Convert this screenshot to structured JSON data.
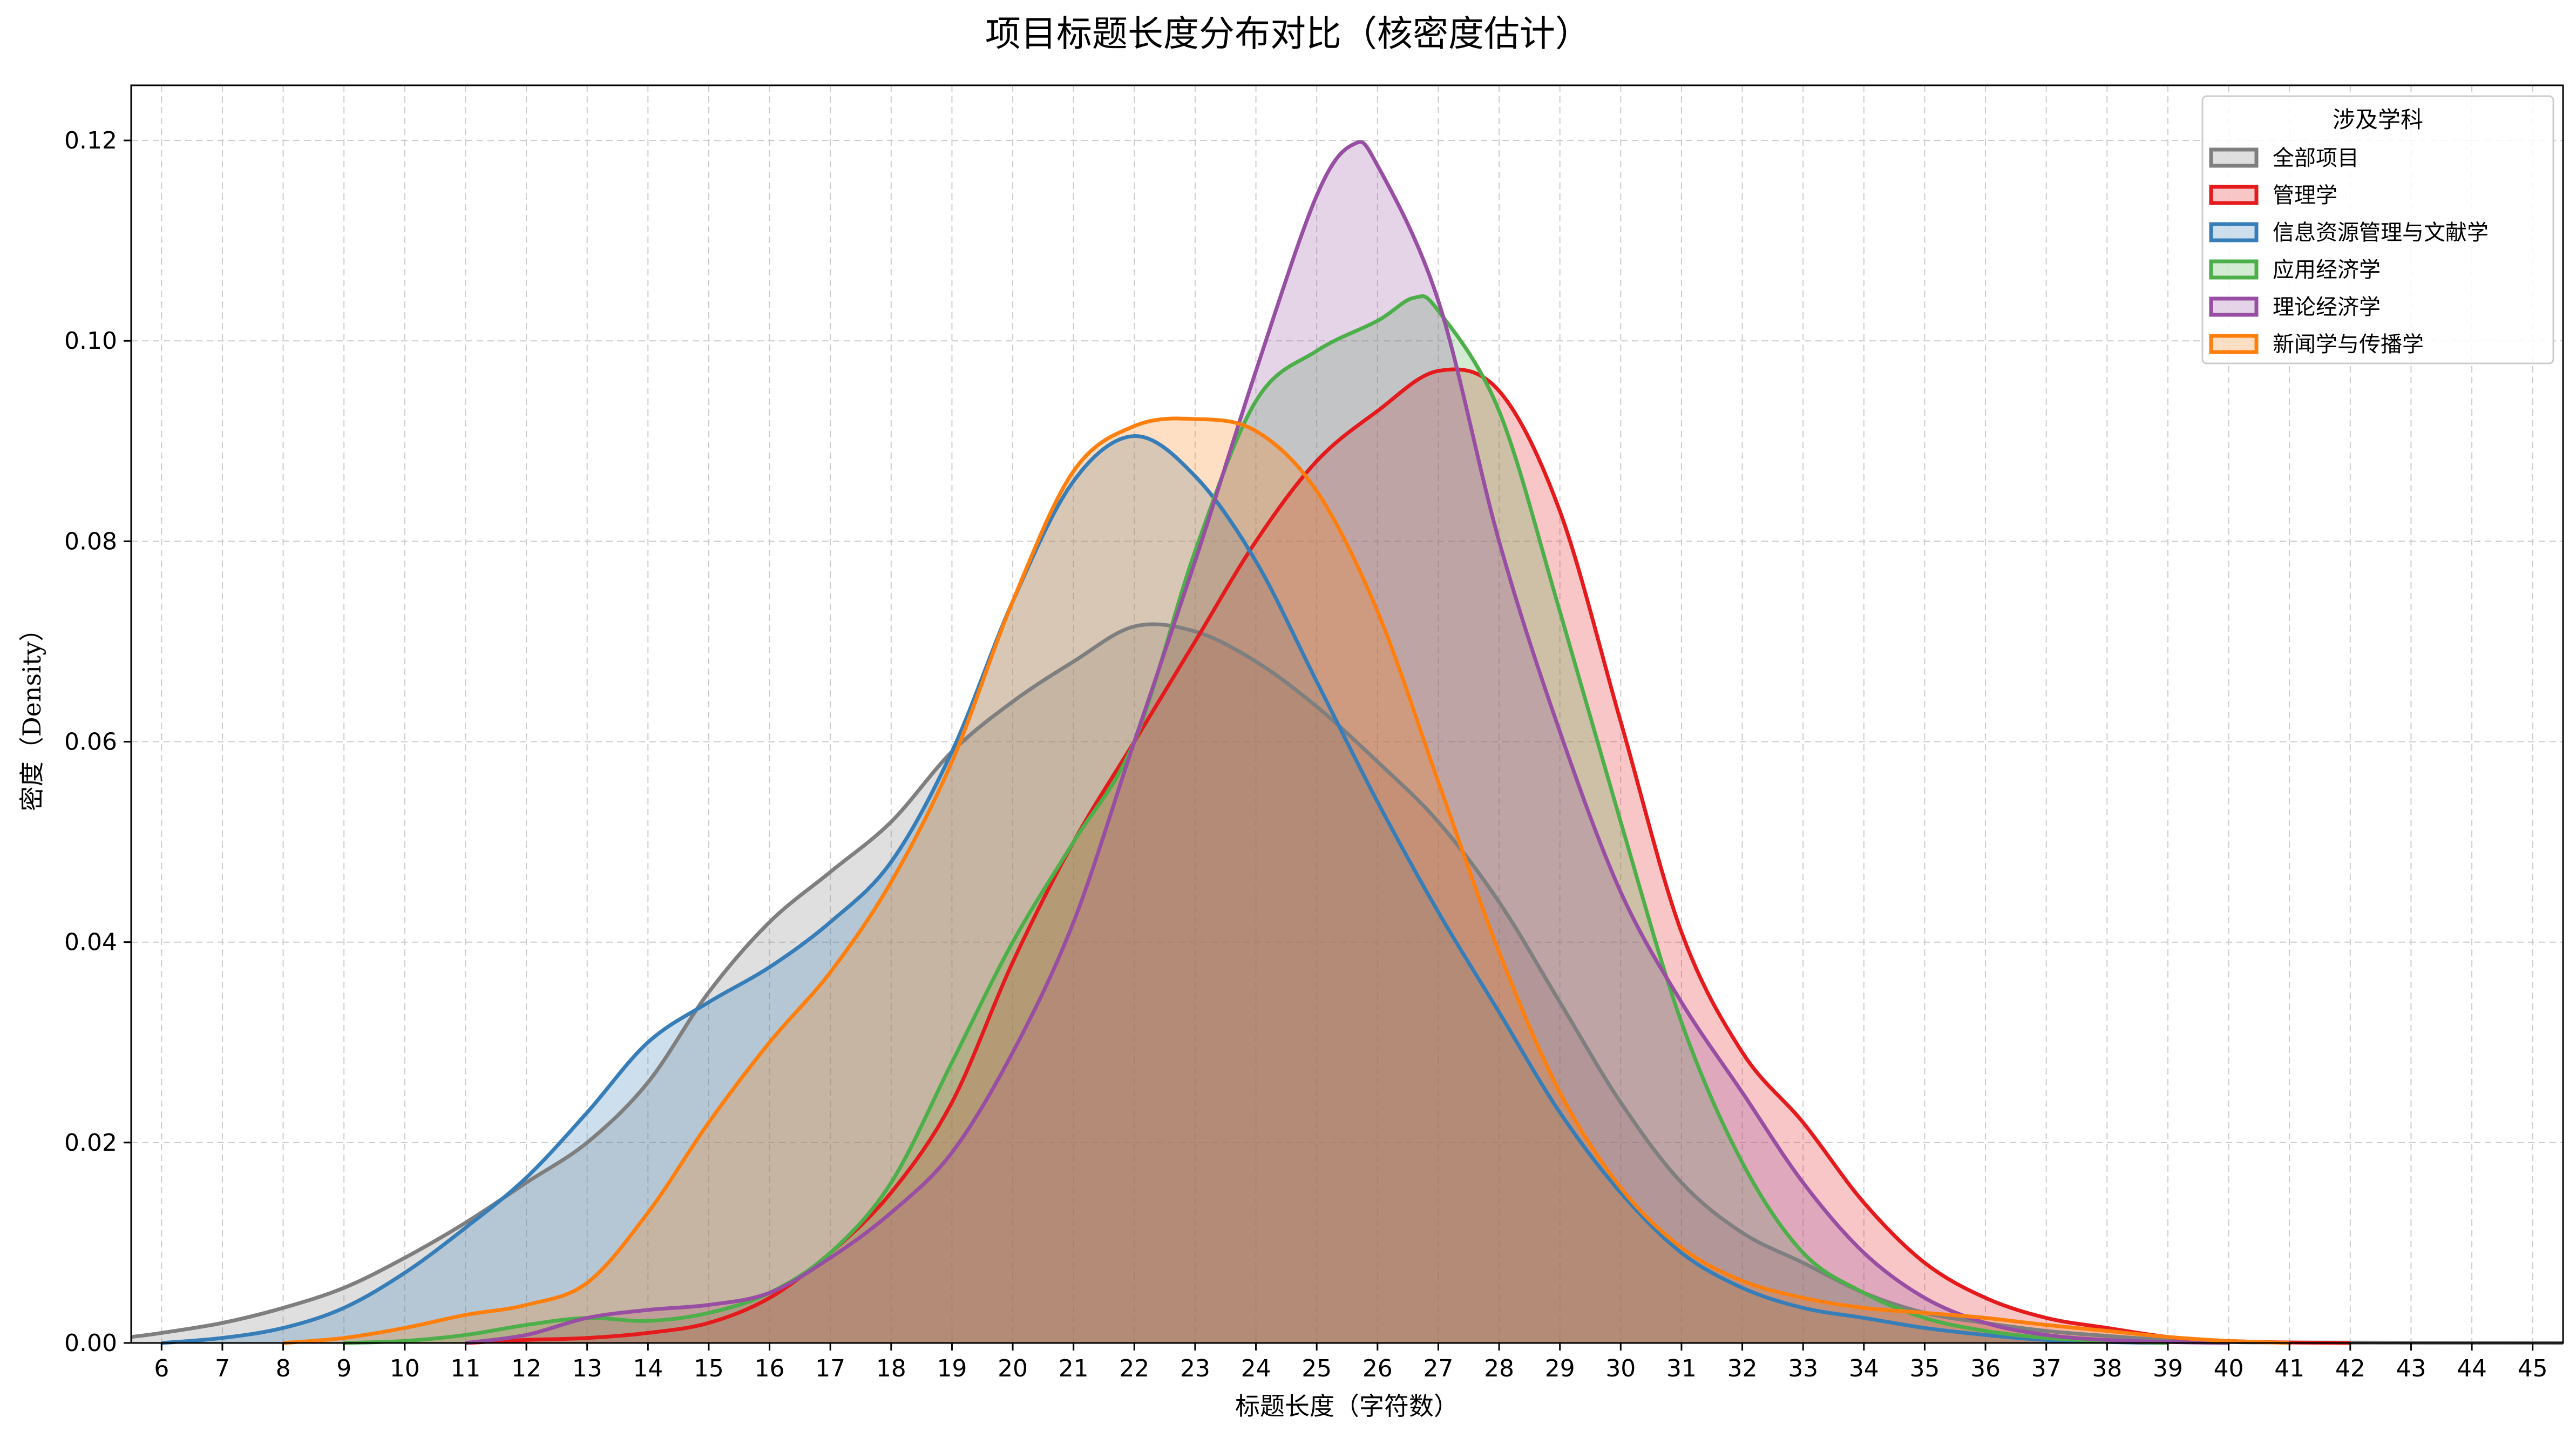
{
  "colors": {
    "全部项目": "#7f7f7f",
    "管理学": "#e41a1c",
    "信息资源管理与文献学": "#377eb8",
    "应用经济学": "#4daf4a",
    "理论经济学": "#984ea3",
    "新闻学与传播学": "#ff7f0e"
  },
  "chart_data": {
    "type": "area",
    "title": "项目标题长度分布对比（核密度估计）",
    "xlabel": "标题长度（字符数）",
    "ylabel": "密度（Density）",
    "xlim": [
      5.5,
      45.5
    ],
    "ylim": [
      0,
      0.1255
    ],
    "x_ticks": [
      6,
      7,
      8,
      9,
      10,
      11,
      12,
      13,
      14,
      15,
      16,
      17,
      18,
      19,
      20,
      21,
      22,
      23,
      24,
      25,
      26,
      27,
      28,
      29,
      30,
      31,
      32,
      33,
      34,
      35,
      36,
      37,
      38,
      39,
      40,
      41,
      42,
      43,
      44,
      45
    ],
    "y_ticks": [
      0.0,
      0.02,
      0.04,
      0.06,
      0.08,
      0.1,
      0.12
    ],
    "y_tick_labels": [
      "0.00",
      "0.02",
      "0.04",
      "0.06",
      "0.08",
      "0.10",
      "0.12"
    ],
    "grid": true,
    "legend": {
      "title": "涉及学科",
      "placement": "top-right"
    },
    "series": [
      {
        "name": "全部项目",
        "color": "#7f7f7f",
        "points": [
          [
            5.5,
            0.0006
          ],
          [
            6,
            0.001
          ],
          [
            7,
            0.002
          ],
          [
            8,
            0.0035
          ],
          [
            9,
            0.0055
          ],
          [
            10,
            0.0085
          ],
          [
            11,
            0.012
          ],
          [
            12,
            0.016
          ],
          [
            13,
            0.02
          ],
          [
            14,
            0.026
          ],
          [
            15,
            0.035
          ],
          [
            16,
            0.042
          ],
          [
            17,
            0.047
          ],
          [
            18,
            0.052
          ],
          [
            19,
            0.059
          ],
          [
            20,
            0.064
          ],
          [
            21,
            0.068
          ],
          [
            22,
            0.0715
          ],
          [
            23,
            0.071
          ],
          [
            24,
            0.068
          ],
          [
            25,
            0.0635
          ],
          [
            26,
            0.058
          ],
          [
            27,
            0.052
          ],
          [
            28,
            0.044
          ],
          [
            29,
            0.034
          ],
          [
            30,
            0.024
          ],
          [
            31,
            0.016
          ],
          [
            32,
            0.011
          ],
          [
            33,
            0.008
          ],
          [
            34,
            0.005
          ],
          [
            35,
            0.003
          ],
          [
            36,
            0.002
          ],
          [
            37,
            0.0012
          ],
          [
            38,
            0.0007
          ],
          [
            39,
            0.0003
          ],
          [
            40,
            0.0001
          ],
          [
            41,
            5e-05
          ],
          [
            45.5,
            0
          ]
        ]
      },
      {
        "name": "管理学",
        "color": "#e41a1c",
        "points": [
          [
            11,
            0
          ],
          [
            12,
            0.0003
          ],
          [
            13,
            0.0005
          ],
          [
            14,
            0.001
          ],
          [
            15,
            0.002
          ],
          [
            16,
            0.0045
          ],
          [
            17,
            0.009
          ],
          [
            18,
            0.015
          ],
          [
            19,
            0.024
          ],
          [
            20,
            0.038
          ],
          [
            21,
            0.05
          ],
          [
            22,
            0.06
          ],
          [
            23,
            0.07
          ],
          [
            24,
            0.08
          ],
          [
            25,
            0.088
          ],
          [
            26,
            0.093
          ],
          [
            27,
            0.097
          ],
          [
            28,
            0.095
          ],
          [
            29,
            0.083
          ],
          [
            30,
            0.062
          ],
          [
            31,
            0.041
          ],
          [
            32,
            0.029
          ],
          [
            33,
            0.022
          ],
          [
            34,
            0.014
          ],
          [
            35,
            0.008
          ],
          [
            36,
            0.0045
          ],
          [
            37,
            0.0025
          ],
          [
            38,
            0.0015
          ],
          [
            39,
            0.0006
          ],
          [
            40,
            0.0002
          ],
          [
            41,
            5e-05
          ],
          [
            42,
            0
          ]
        ]
      },
      {
        "name": "信息资源管理与文献学",
        "color": "#377eb8",
        "points": [
          [
            6,
            0
          ],
          [
            7,
            0.0005
          ],
          [
            8,
            0.0015
          ],
          [
            9,
            0.0035
          ],
          [
            10,
            0.007
          ],
          [
            11,
            0.0115
          ],
          [
            12,
            0.0165
          ],
          [
            13,
            0.023
          ],
          [
            14,
            0.03
          ],
          [
            15,
            0.034
          ],
          [
            16,
            0.0375
          ],
          [
            17,
            0.042
          ],
          [
            18,
            0.048
          ],
          [
            19,
            0.059
          ],
          [
            20,
            0.074
          ],
          [
            21,
            0.086
          ],
          [
            22,
            0.0905
          ],
          [
            23,
            0.0865
          ],
          [
            24,
            0.078
          ],
          [
            25,
            0.066
          ],
          [
            26,
            0.054
          ],
          [
            27,
            0.043
          ],
          [
            28,
            0.033
          ],
          [
            29,
            0.023
          ],
          [
            30,
            0.015
          ],
          [
            31,
            0.009
          ],
          [
            32,
            0.0055
          ],
          [
            33,
            0.0035
          ],
          [
            34,
            0.0025
          ],
          [
            35,
            0.0015
          ],
          [
            36,
            0.0008
          ],
          [
            37,
            0.0003
          ],
          [
            38,
            0.0001
          ],
          [
            39,
            0
          ]
        ]
      },
      {
        "name": "应用经济学",
        "color": "#4daf4a",
        "points": [
          [
            9,
            0
          ],
          [
            10,
            0.0002
          ],
          [
            11,
            0.0008
          ],
          [
            12,
            0.0018
          ],
          [
            13,
            0.0025
          ],
          [
            14,
            0.0022
          ],
          [
            15,
            0.003
          ],
          [
            16,
            0.005
          ],
          [
            17,
            0.009
          ],
          [
            18,
            0.016
          ],
          [
            19,
            0.028
          ],
          [
            20,
            0.04
          ],
          [
            21,
            0.05
          ],
          [
            22,
            0.06
          ],
          [
            23,
            0.079
          ],
          [
            24,
            0.094
          ],
          [
            25,
            0.099
          ],
          [
            26,
            0.102
          ],
          [
            26.6,
            0.1043
          ],
          [
            27,
            0.103
          ],
          [
            28,
            0.093
          ],
          [
            29,
            0.073
          ],
          [
            30,
            0.052
          ],
          [
            31,
            0.032
          ],
          [
            32,
            0.018
          ],
          [
            33,
            0.009
          ],
          [
            34,
            0.005
          ],
          [
            35,
            0.0025
          ],
          [
            36,
            0.0012
          ],
          [
            37,
            0.0005
          ],
          [
            38,
            0.0002
          ],
          [
            39,
            0
          ]
        ]
      },
      {
        "name": "理论经济学",
        "color": "#984ea3",
        "points": [
          [
            11,
            0
          ],
          [
            12,
            0.0008
          ],
          [
            13,
            0.0025
          ],
          [
            14,
            0.0033
          ],
          [
            15,
            0.0038
          ],
          [
            16,
            0.005
          ],
          [
            17,
            0.0085
          ],
          [
            18,
            0.013
          ],
          [
            19,
            0.019
          ],
          [
            20,
            0.029
          ],
          [
            21,
            0.042
          ],
          [
            22,
            0.06
          ],
          [
            23,
            0.078
          ],
          [
            24,
            0.097
          ],
          [
            25,
            0.1145
          ],
          [
            25.6,
            0.1196
          ],
          [
            26,
            0.1175
          ],
          [
            27,
            0.104
          ],
          [
            28,
            0.08
          ],
          [
            29,
            0.061
          ],
          [
            30,
            0.045
          ],
          [
            31,
            0.034
          ],
          [
            32,
            0.025
          ],
          [
            33,
            0.016
          ],
          [
            34,
            0.009
          ],
          [
            35,
            0.0045
          ],
          [
            36,
            0.002
          ],
          [
            37,
            0.0008
          ],
          [
            38,
            0.0003
          ],
          [
            39,
            0.0001
          ],
          [
            40,
            0
          ]
        ]
      },
      {
        "name": "新闻学与传播学",
        "color": "#ff7f0e",
        "points": [
          [
            8,
            0
          ],
          [
            9,
            0.0005
          ],
          [
            10,
            0.0015
          ],
          [
            11,
            0.0028
          ],
          [
            12,
            0.0038
          ],
          [
            13,
            0.006
          ],
          [
            14,
            0.013
          ],
          [
            15,
            0.022
          ],
          [
            16,
            0.03
          ],
          [
            17,
            0.037
          ],
          [
            18,
            0.046
          ],
          [
            19,
            0.058
          ],
          [
            20,
            0.074
          ],
          [
            21,
            0.087
          ],
          [
            22,
            0.0915
          ],
          [
            23,
            0.0922
          ],
          [
            24,
            0.091
          ],
          [
            25,
            0.085
          ],
          [
            26,
            0.073
          ],
          [
            27,
            0.056
          ],
          [
            28,
            0.039
          ],
          [
            29,
            0.025
          ],
          [
            30,
            0.0155
          ],
          [
            31,
            0.0095
          ],
          [
            32,
            0.0062
          ],
          [
            33,
            0.0045
          ],
          [
            34,
            0.0035
          ],
          [
            35,
            0.003
          ],
          [
            36,
            0.0025
          ],
          [
            37,
            0.0018
          ],
          [
            38,
            0.0012
          ],
          [
            39,
            0.0006
          ],
          [
            40,
            0.0002
          ],
          [
            41,
            0
          ]
        ]
      }
    ]
  }
}
